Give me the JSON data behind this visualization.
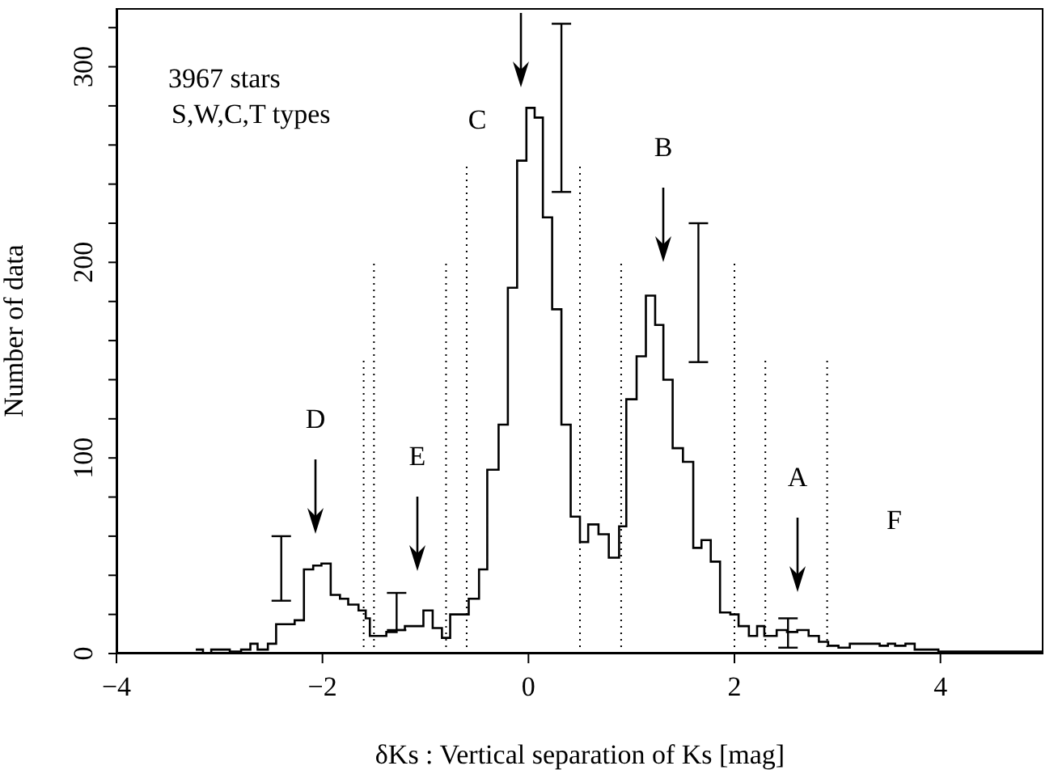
{
  "chart_data": {
    "type": "histogram",
    "xlabel": "δKs : Vertical separation of Ks [mag]",
    "ylabel": "Number of data",
    "color": "#000000",
    "bins": [
      -3.23,
      -3.16,
      -3.08,
      -2.9,
      -2.79,
      -2.7,
      -2.63,
      -2.53,
      -2.45,
      -2.38,
      -2.27,
      -2.18,
      -2.09,
      -2.01,
      -1.92,
      -1.83,
      -1.75,
      -1.65,
      -1.58,
      -1.54,
      -1.46,
      -1.38,
      -1.28,
      -1.2,
      -1.11,
      -1.02,
      -0.93,
      -0.84,
      -0.76,
      -0.67,
      -0.58,
      -0.48,
      -0.4,
      -0.29,
      -0.2,
      -0.11,
      -0.02,
      0.06,
      0.14,
      0.23,
      0.32,
      0.41,
      0.5,
      0.58,
      0.68,
      0.78,
      0.88,
      0.95,
      1.05,
      1.14,
      1.23,
      1.31,
      1.4,
      1.5,
      1.6,
      1.68,
      1.77,
      1.86,
      1.96,
      2.04,
      2.14,
      2.22,
      2.29,
      2.41,
      2.51,
      2.61,
      2.72,
      2.82,
      2.91,
      3.01,
      3.12,
      3.22,
      3.31,
      3.41,
      3.49,
      3.56,
      3.66,
      3.75,
      3.85,
      3.98,
      4.09,
      5.0
    ],
    "values": [
      2,
      0,
      2,
      1,
      2,
      5,
      2,
      5,
      15,
      15,
      17,
      43,
      45,
      46,
      30,
      28,
      25,
      22,
      18,
      9,
      9,
      11,
      12,
      14,
      14,
      22,
      13,
      8,
      20,
      20,
      28,
      43,
      94,
      117,
      187,
      252,
      279,
      274,
      223,
      176,
      117,
      70,
      57,
      66,
      61,
      49,
      65,
      130,
      152,
      183,
      168,
      140,
      105,
      98,
      54,
      58,
      47,
      21,
      20,
      14,
      9,
      14,
      9,
      12,
      11,
      12,
      9,
      6,
      4,
      3,
      5,
      5,
      5,
      4,
      5,
      4,
      5,
      2,
      2,
      1,
      1
    ],
    "series": [
      {
        "type": "line",
        "x": [
          -1.6,
          -1.6
        ],
        "values": [
          0,
          150
        ],
        "line_style": "dotted",
        "color": "#000000"
      },
      {
        "type": "line",
        "x": [
          -1.5,
          -1.5
        ],
        "values": [
          0,
          200
        ],
        "line_style": "dotted",
        "color": "#000000"
      },
      {
        "type": "line",
        "x": [
          -0.8,
          -0.8
        ],
        "values": [
          0,
          200
        ],
        "line_style": "dotted",
        "color": "#000000"
      },
      {
        "type": "line",
        "x": [
          -0.6,
          -0.6
        ],
        "values": [
          0,
          250
        ],
        "line_style": "dotted",
        "color": "#000000"
      },
      {
        "type": "line",
        "x": [
          0.5,
          0.5
        ],
        "values": [
          0,
          250
        ],
        "line_style": "dotted",
        "color": "#000000"
      },
      {
        "type": "line",
        "x": [
          0.9,
          0.9
        ],
        "values": [
          0,
          200
        ],
        "line_style": "dotted",
        "color": "#000000"
      },
      {
        "type": "line",
        "x": [
          2.0,
          2.0
        ],
        "values": [
          0,
          200
        ],
        "line_style": "dotted",
        "color": "#000000"
      },
      {
        "type": "line",
        "x": [
          2.3,
          2.3
        ],
        "values": [
          0,
          150
        ],
        "line_style": "dotted",
        "color": "#000000"
      },
      {
        "type": "line",
        "x": [
          2.9,
          2.9
        ],
        "values": [
          0,
          150
        ],
        "line_style": "dotted",
        "color": "#000000"
      },
      {
        "type": "line",
        "x": [
          -2.4,
          -2.4
        ],
        "values": [
          27,
          60
        ],
        "line_style": "solid",
        "color": "#000000"
      },
      {
        "type": "line",
        "x": [
          -1.28,
          -1.28
        ],
        "values": [
          12,
          31
        ],
        "line_style": "solid",
        "color": "#000000"
      },
      {
        "type": "line",
        "x": [
          0.32,
          0.32
        ],
        "values": [
          236,
          322
        ],
        "line_style": "solid",
        "color": "#000000"
      },
      {
        "type": "line",
        "x": [
          1.65,
          1.65
        ],
        "values": [
          149,
          220
        ],
        "line_style": "solid",
        "color": "#000000"
      },
      {
        "type": "line",
        "x": [
          2.52,
          2.52
        ],
        "values": [
          3,
          18
        ],
        "line_style": "solid",
        "color": "#000000"
      }
    ],
    "annotations": [
      "3967 stars",
      "S,W,C,T types",
      "D",
      "E",
      "C",
      "B",
      "A",
      "F"
    ],
    "xlim": [
      -4,
      5
    ],
    "xticks": [
      {
        "value": -4,
        "label": "−4"
      },
      {
        "value": -2,
        "label": "−2"
      },
      0,
      2,
      4
    ],
    "ylim": [
      0,
      330
    ],
    "yticks": [
      0,
      {
        "value": 20,
        "label": null
      },
      {
        "value": 40,
        "label": null
      },
      {
        "value": 60,
        "label": null
      },
      {
        "value": 80,
        "label": null
      },
      100,
      {
        "value": 120,
        "label": null
      },
      {
        "value": 140,
        "label": null
      },
      {
        "value": 160,
        "label": null
      },
      {
        "value": 180,
        "label": null
      },
      200,
      {
        "value": 220,
        "label": null
      },
      {
        "value": 240,
        "label": null
      },
      {
        "value": 260,
        "label": null
      },
      {
        "value": 280,
        "label": null
      },
      300,
      {
        "value": 320,
        "label": null
      }
    ],
    "grid": false
  }
}
